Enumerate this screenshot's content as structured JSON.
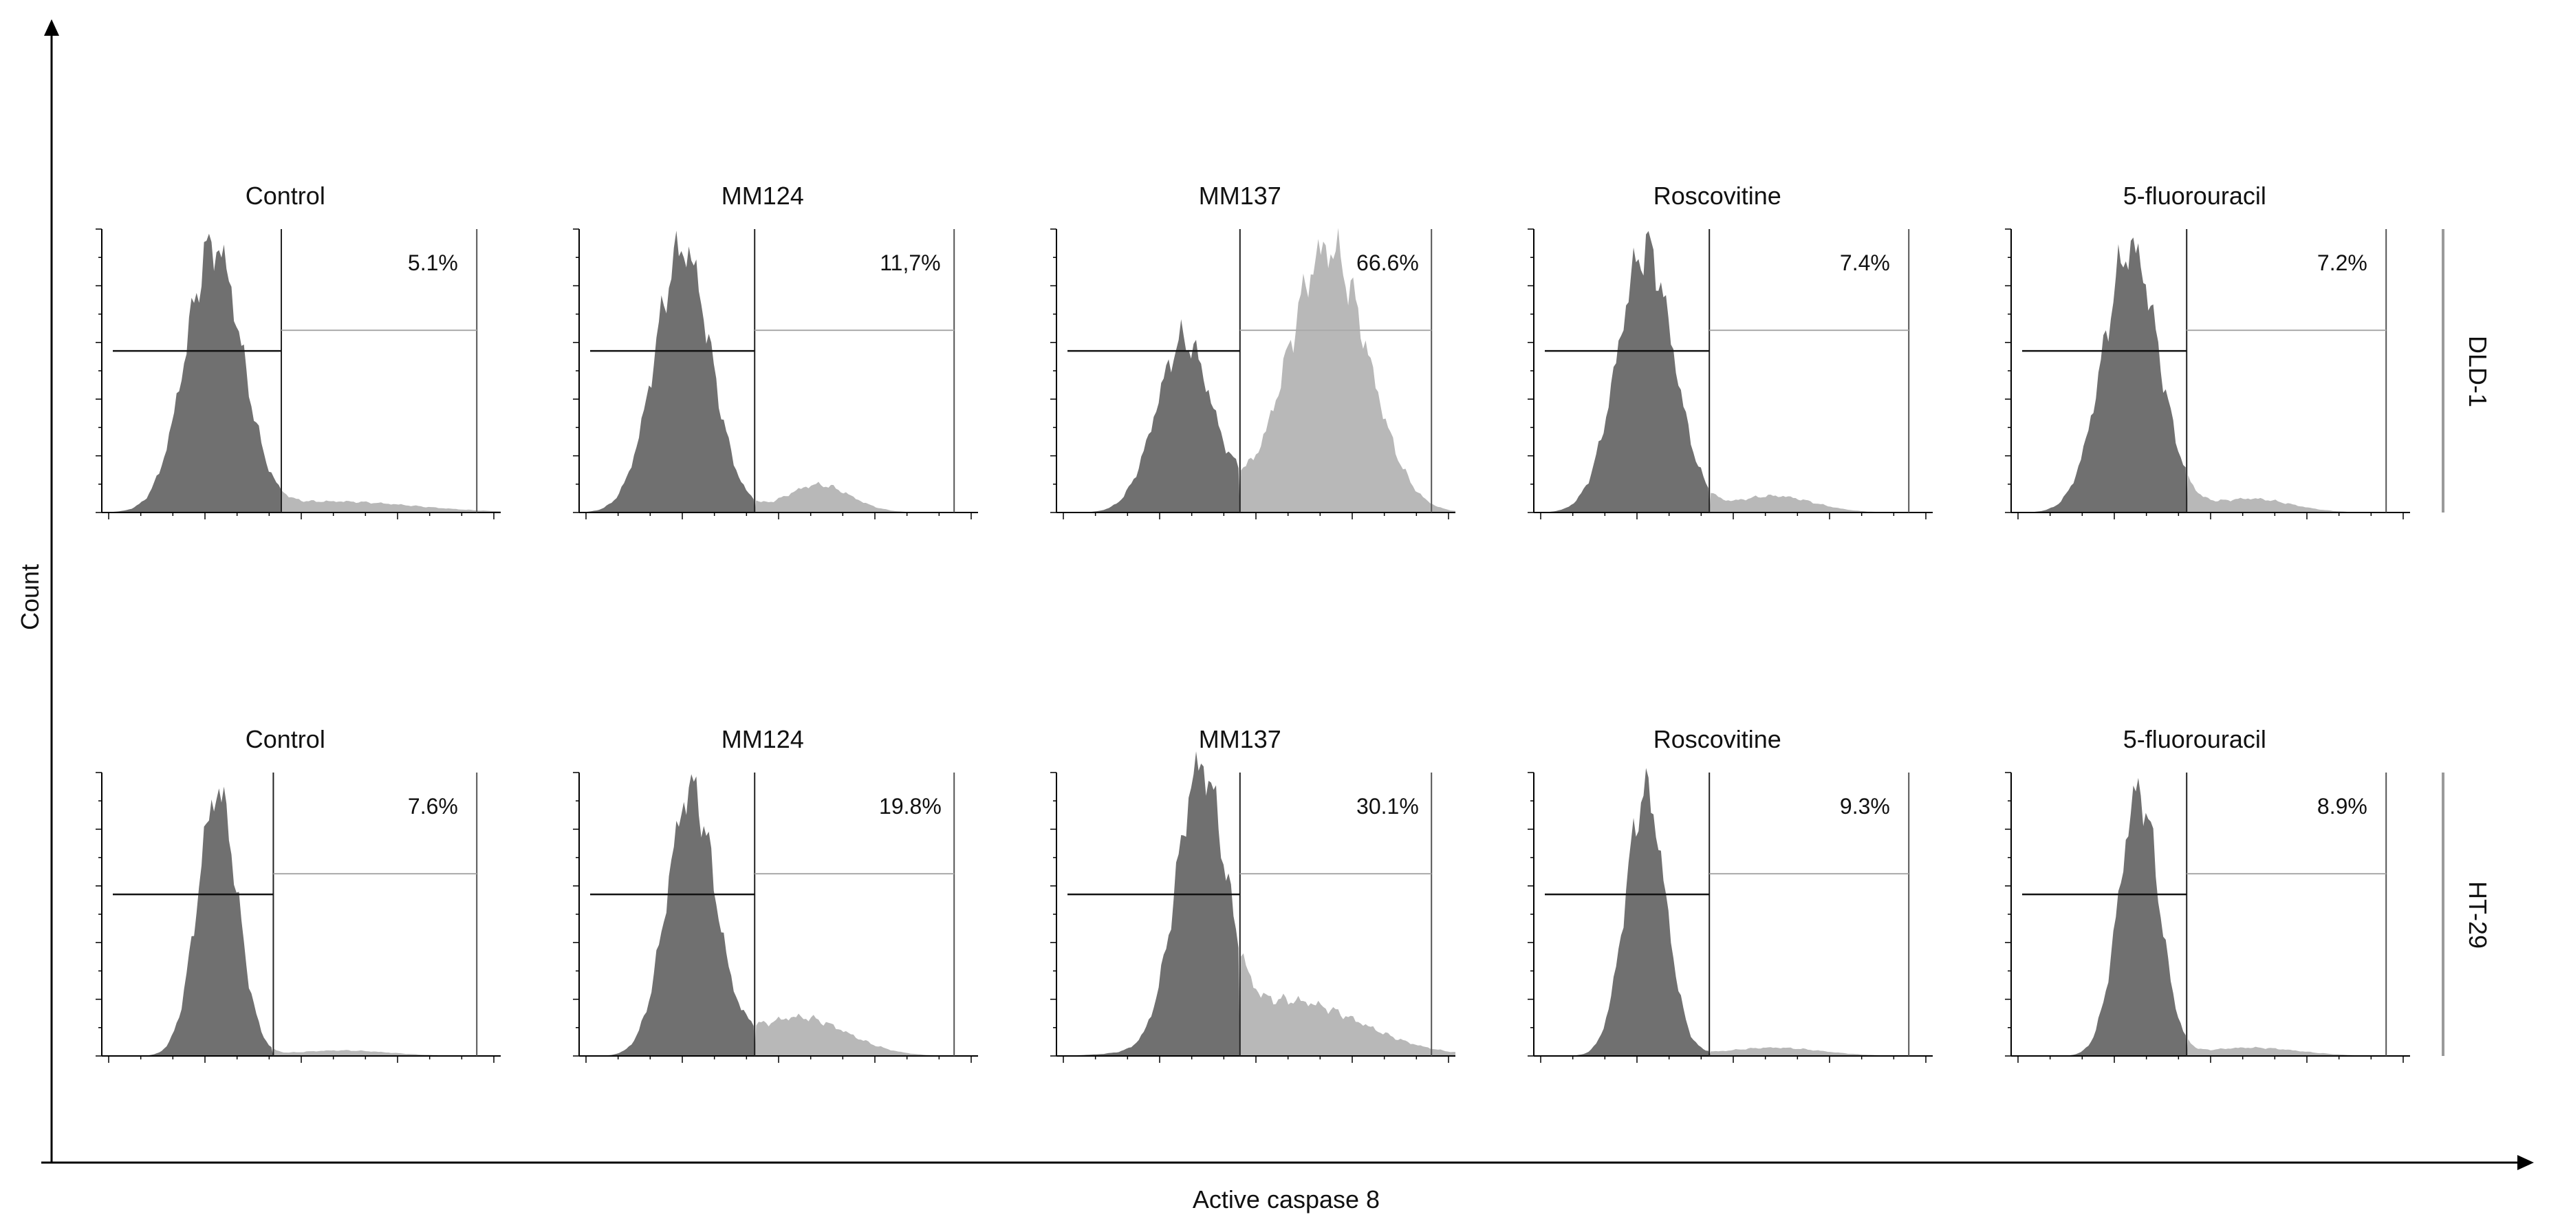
{
  "chart_data": [
    {
      "type": "histogram",
      "cell_line": "DLD-1",
      "xlabel": "Active caspase 8",
      "ylabel": "Count",
      "panels": [
        {
          "title": "Control",
          "percent_label": "5.1%",
          "gate_position": 0.45,
          "peaks": [
            {
              "center": 0.28,
              "width": 0.07,
              "height": 0.95
            },
            {
              "center": 0.58,
              "width": 0.2,
              "height": 0.04
            }
          ]
        },
        {
          "title": "MM124",
          "percent_label": "11,7%",
          "gate_position": 0.44,
          "peaks": [
            {
              "center": 0.26,
              "width": 0.07,
              "height": 0.95
            },
            {
              "center": 0.6,
              "width": 0.08,
              "height": 0.1
            }
          ]
        },
        {
          "title": "MM137",
          "percent_label": "66.6%",
          "gate_position": 0.46,
          "peaks": [
            {
              "center": 0.32,
              "width": 0.07,
              "height": 0.62
            },
            {
              "center": 0.68,
              "width": 0.1,
              "height": 0.95
            }
          ]
        },
        {
          "title": "Roscovitine",
          "percent_label": "7.4%",
          "gate_position": 0.44,
          "peaks": [
            {
              "center": 0.28,
              "width": 0.07,
              "height": 0.95
            },
            {
              "center": 0.6,
              "width": 0.1,
              "height": 0.06
            }
          ]
        },
        {
          "title": "5-fluorouracil",
          "percent_label": "7.2%",
          "gate_position": 0.44,
          "peaks": [
            {
              "center": 0.3,
              "width": 0.07,
              "height": 0.95
            },
            {
              "center": 0.6,
              "width": 0.1,
              "height": 0.05
            }
          ]
        }
      ]
    },
    {
      "type": "histogram",
      "cell_line": "HT-29",
      "xlabel": "Active caspase 8",
      "ylabel": "Count",
      "panels": [
        {
          "title": "Control",
          "percent_label": "7.6%",
          "gate_position": 0.43,
          "peaks": [
            {
              "center": 0.29,
              "width": 0.05,
              "height": 0.95
            },
            {
              "center": 0.6,
              "width": 0.12,
              "height": 0.02
            }
          ]
        },
        {
          "title": "MM124",
          "percent_label": "19.8%",
          "gate_position": 0.44,
          "peaks": [
            {
              "center": 0.28,
              "width": 0.06,
              "height": 0.95
            },
            {
              "center": 0.55,
              "width": 0.12,
              "height": 0.14
            }
          ]
        },
        {
          "title": "MM137",
          "percent_label": "30.1%",
          "gate_position": 0.46,
          "peaks": [
            {
              "center": 0.36,
              "width": 0.06,
              "height": 0.95
            },
            {
              "center": 0.58,
              "width": 0.18,
              "height": 0.2
            }
          ]
        },
        {
          "title": "Roscovitine",
          "percent_label": "9.3%",
          "gate_position": 0.44,
          "peaks": [
            {
              "center": 0.28,
              "width": 0.05,
              "height": 0.95
            },
            {
              "center": 0.6,
              "width": 0.12,
              "height": 0.03
            }
          ]
        },
        {
          "title": "5-fluorouracil",
          "percent_label": "8.9%",
          "gate_position": 0.44,
          "peaks": [
            {
              "center": 0.32,
              "width": 0.05,
              "height": 0.95
            },
            {
              "center": 0.6,
              "width": 0.12,
              "height": 0.03
            }
          ]
        }
      ]
    }
  ],
  "colors": {
    "negative_fill": "#707070",
    "positive_fill": "#b8b8b8",
    "axis": "#000000",
    "row_bar": "#9a9a9a"
  }
}
